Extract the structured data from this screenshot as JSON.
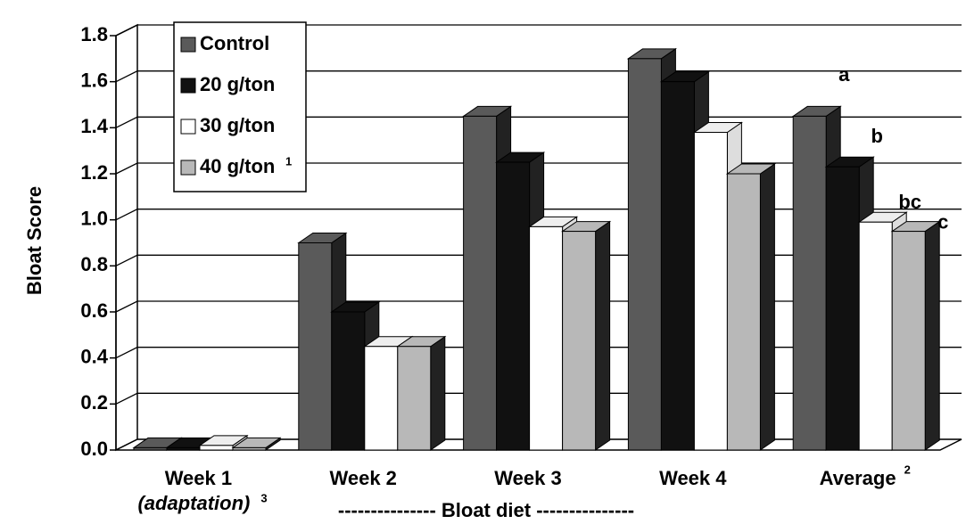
{
  "chart_data": {
    "type": "bar3d",
    "y_label": "Bloat Score",
    "categories": [
      "Week 1",
      "Week 2",
      "Week 3",
      "Week 4",
      "Average"
    ],
    "category_sublabel": "(adaptation)",
    "category_sublabel_footnote": "3",
    "average_footnote": "2",
    "x_annotation": "--------------- Bloat diet ---------------",
    "series": [
      {
        "name": "Control",
        "color": "#5a5a5a",
        "values": [
          0.01,
          0.9,
          1.45,
          1.7,
          1.45
        ]
      },
      {
        "name": "20 g/ton",
        "color": "#111111",
        "values": [
          0.01,
          0.6,
          1.25,
          1.6,
          1.23
        ]
      },
      {
        "name": "30 g/ton",
        "color": "#ffffff",
        "values": [
          0.02,
          0.45,
          0.97,
          1.38,
          0.99
        ]
      },
      {
        "name": "40 g/ton",
        "color": "#b8b8b8",
        "values": [
          0.01,
          0.45,
          0.95,
          1.2,
          0.95
        ]
      }
    ],
    "legend_footnote": "1",
    "significance_labels": [
      "a",
      "b",
      "bc",
      "c"
    ],
    "ylim": [
      0,
      1.8
    ],
    "yticks": [
      {
        "value": 0,
        "label": "0.0"
      },
      0.2,
      0.4,
      0.6,
      0.8,
      {
        "value": 1,
        "label": "1.0"
      },
      1.2,
      1.4,
      1.6,
      1.8
    ],
    "grid": true,
    "legend": "upper left"
  }
}
